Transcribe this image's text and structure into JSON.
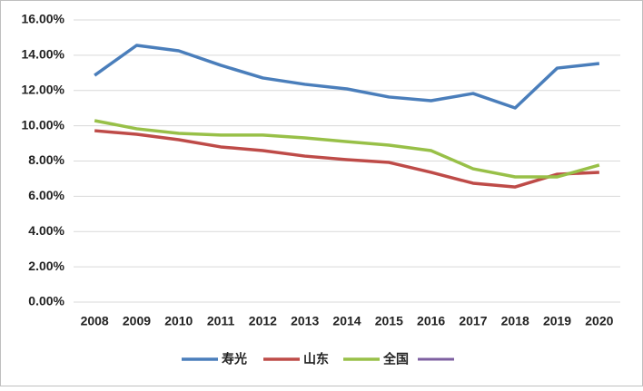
{
  "chart_data": {
    "type": "line",
    "categories": [
      "2008",
      "2009",
      "2010",
      "2011",
      "2012",
      "2013",
      "2014",
      "2015",
      "2016",
      "2017",
      "2018",
      "2019",
      "2020"
    ],
    "series": [
      {
        "name": "寿光",
        "color": "#4a7ebb",
        "values": [
          12.86,
          14.56,
          14.25,
          13.43,
          12.71,
          12.35,
          12.09,
          11.63,
          11.42,
          11.83,
          11.01,
          13.27,
          13.53
        ]
      },
      {
        "name": "山东",
        "color": "#be4b48",
        "values": [
          9.72,
          9.52,
          9.21,
          8.8,
          8.59,
          8.28,
          8.08,
          7.92,
          7.36,
          6.74,
          6.53,
          7.25,
          7.36
        ]
      },
      {
        "name": "全国",
        "color": "#98c048",
        "values": [
          10.29,
          9.83,
          9.57,
          9.47,
          9.47,
          9.31,
          9.1,
          8.9,
          8.59,
          7.56,
          7.1,
          7.1,
          7.77
        ]
      }
    ],
    "ylim": [
      0,
      16
    ],
    "yticks": [
      {
        "value": 0,
        "label": "0.00%"
      },
      {
        "value": 2,
        "label": "2.00%"
      },
      {
        "value": 4,
        "label": "4.00%"
      },
      {
        "value": 6,
        "label": "6.00%"
      },
      {
        "value": 8,
        "label": "8.00%"
      },
      {
        "value": 10,
        "label": "10.00%"
      },
      {
        "value": 12,
        "label": "12.00%"
      },
      {
        "value": 14,
        "label": "14.00%"
      },
      {
        "value": 16,
        "label": "16.00%"
      }
    ],
    "grid": true
  }
}
